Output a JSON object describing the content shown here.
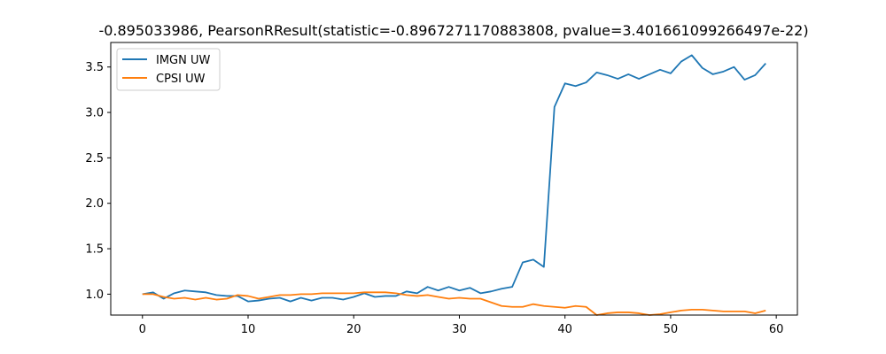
{
  "chart_data": {
    "type": "line",
    "title": "-0.895033986, PearsonRResult(statistic=-0.8967271170883808, pvalue=3.401661099266497e-22)",
    "xlabel": "",
    "ylabel": "",
    "xlim": [
      -3,
      62
    ],
    "ylim": [
      0.77,
      3.77
    ],
    "xticks": [
      0,
      10,
      20,
      30,
      40,
      50,
      60
    ],
    "yticks": [
      1.0,
      1.5,
      2.0,
      2.5,
      3.0,
      3.5
    ],
    "grid": false,
    "legend_position": "top-left",
    "x": [
      0,
      1,
      2,
      3,
      4,
      5,
      6,
      7,
      8,
      9,
      10,
      11,
      12,
      13,
      14,
      15,
      16,
      17,
      18,
      19,
      20,
      21,
      22,
      23,
      24,
      25,
      26,
      27,
      28,
      29,
      30,
      31,
      32,
      33,
      34,
      35,
      36,
      37,
      38,
      39,
      40,
      41,
      42,
      43,
      44,
      45,
      46,
      47,
      48,
      49,
      50,
      51,
      52,
      53,
      54,
      55,
      56,
      57,
      58,
      59
    ],
    "series": [
      {
        "name": "IMGN UW",
        "color": "#1f77b4",
        "values": [
          1.0,
          1.02,
          0.95,
          1.01,
          1.04,
          1.03,
          1.02,
          0.99,
          0.98,
          0.98,
          0.92,
          0.93,
          0.95,
          0.96,
          0.92,
          0.96,
          0.93,
          0.96,
          0.96,
          0.94,
          0.97,
          1.01,
          0.97,
          0.98,
          0.98,
          1.03,
          1.01,
          1.08,
          1.04,
          1.08,
          1.04,
          1.07,
          1.01,
          1.03,
          1.06,
          1.08,
          1.35,
          1.38,
          1.3,
          3.06,
          3.32,
          3.29,
          3.33,
          3.44,
          3.41,
          3.37,
          3.42,
          3.37,
          3.42,
          3.47,
          3.43,
          3.56,
          3.63,
          3.49,
          3.42,
          3.45,
          3.5,
          3.36,
          3.41,
          3.54
        ]
      },
      {
        "name": "CPSI UW",
        "color": "#ff7f0e",
        "values": [
          1.0,
          1.0,
          0.97,
          0.95,
          0.96,
          0.94,
          0.96,
          0.94,
          0.95,
          0.99,
          0.98,
          0.95,
          0.97,
          0.99,
          0.99,
          1.0,
          1.0,
          1.01,
          1.01,
          1.01,
          1.01,
          1.02,
          1.02,
          1.02,
          1.01,
          0.99,
          0.98,
          0.99,
          0.97,
          0.95,
          0.96,
          0.95,
          0.95,
          0.91,
          0.87,
          0.86,
          0.86,
          0.89,
          0.87,
          0.86,
          0.85,
          0.87,
          0.86,
          0.77,
          0.79,
          0.8,
          0.8,
          0.79,
          0.77,
          0.78,
          0.8,
          0.82,
          0.83,
          0.83,
          0.82,
          0.81,
          0.81,
          0.81,
          0.79,
          0.82
        ]
      }
    ]
  }
}
